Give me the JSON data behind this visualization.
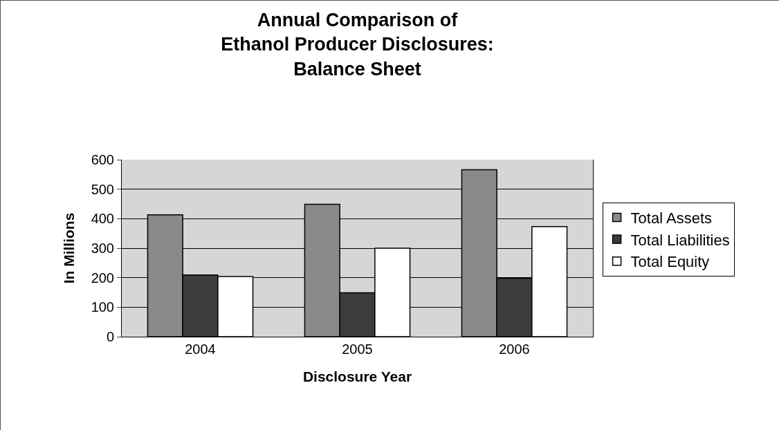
{
  "chart_data": {
    "type": "bar",
    "title": "Annual Comparison of\nEthanol Producer Disclosures:\nBalance Sheet",
    "xlabel": "Disclosure Year",
    "ylabel": "In Millions",
    "categories": [
      "2004",
      "2005",
      "2006"
    ],
    "series": [
      {
        "name": "Total Assets",
        "color": "#8a8a8a",
        "values": [
          413,
          449,
          566
        ]
      },
      {
        "name": "Total Liabilities",
        "color": "#3c3c3c",
        "values": [
          209,
          149,
          198
        ]
      },
      {
        "name": "Total Equity",
        "color": "#ffffff",
        "values": [
          204,
          300,
          373
        ]
      }
    ],
    "ylim": [
      0,
      600
    ],
    "yticks": [
      0,
      100,
      200,
      300,
      400,
      500,
      600
    ],
    "grid": "y",
    "legend": "right"
  }
}
